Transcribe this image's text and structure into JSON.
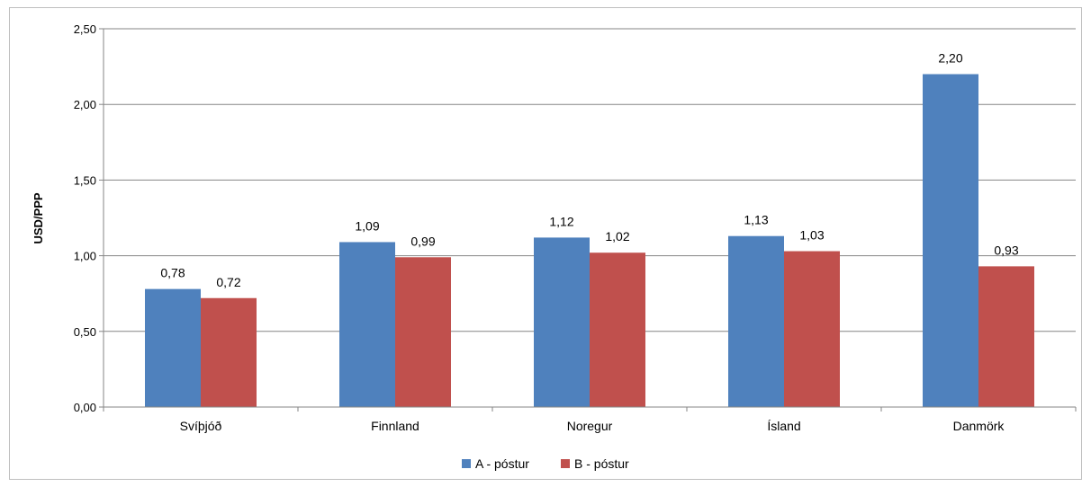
{
  "chart_data": {
    "type": "bar",
    "ylabel": "USD/PPP",
    "ylim": [
      0,
      2.5
    ],
    "yticks": [
      "0,00",
      "0,50",
      "1,00",
      "1,50",
      "2,00",
      "2,50"
    ],
    "ytick_values": [
      0,
      0.5,
      1.0,
      1.5,
      2.0,
      2.5
    ],
    "categories": [
      "Svíþjóð",
      "Finnland",
      "Noregur",
      "Ísland",
      "Danmörk"
    ],
    "series": [
      {
        "name": "A - póstur",
        "color": "#4f81bd",
        "values": [
          0.78,
          1.09,
          1.12,
          1.13,
          2.2
        ],
        "labels": [
          "0,78",
          "1,09",
          "1,12",
          "1,13",
          "2,20"
        ]
      },
      {
        "name": "B - póstur",
        "color": "#c0504d",
        "values": [
          0.72,
          0.99,
          1.02,
          1.03,
          0.93
        ],
        "labels": [
          "0,72",
          "0,99",
          "1,02",
          "1,03",
          "0,93"
        ]
      }
    ],
    "grid": true,
    "legend": "bottom"
  }
}
